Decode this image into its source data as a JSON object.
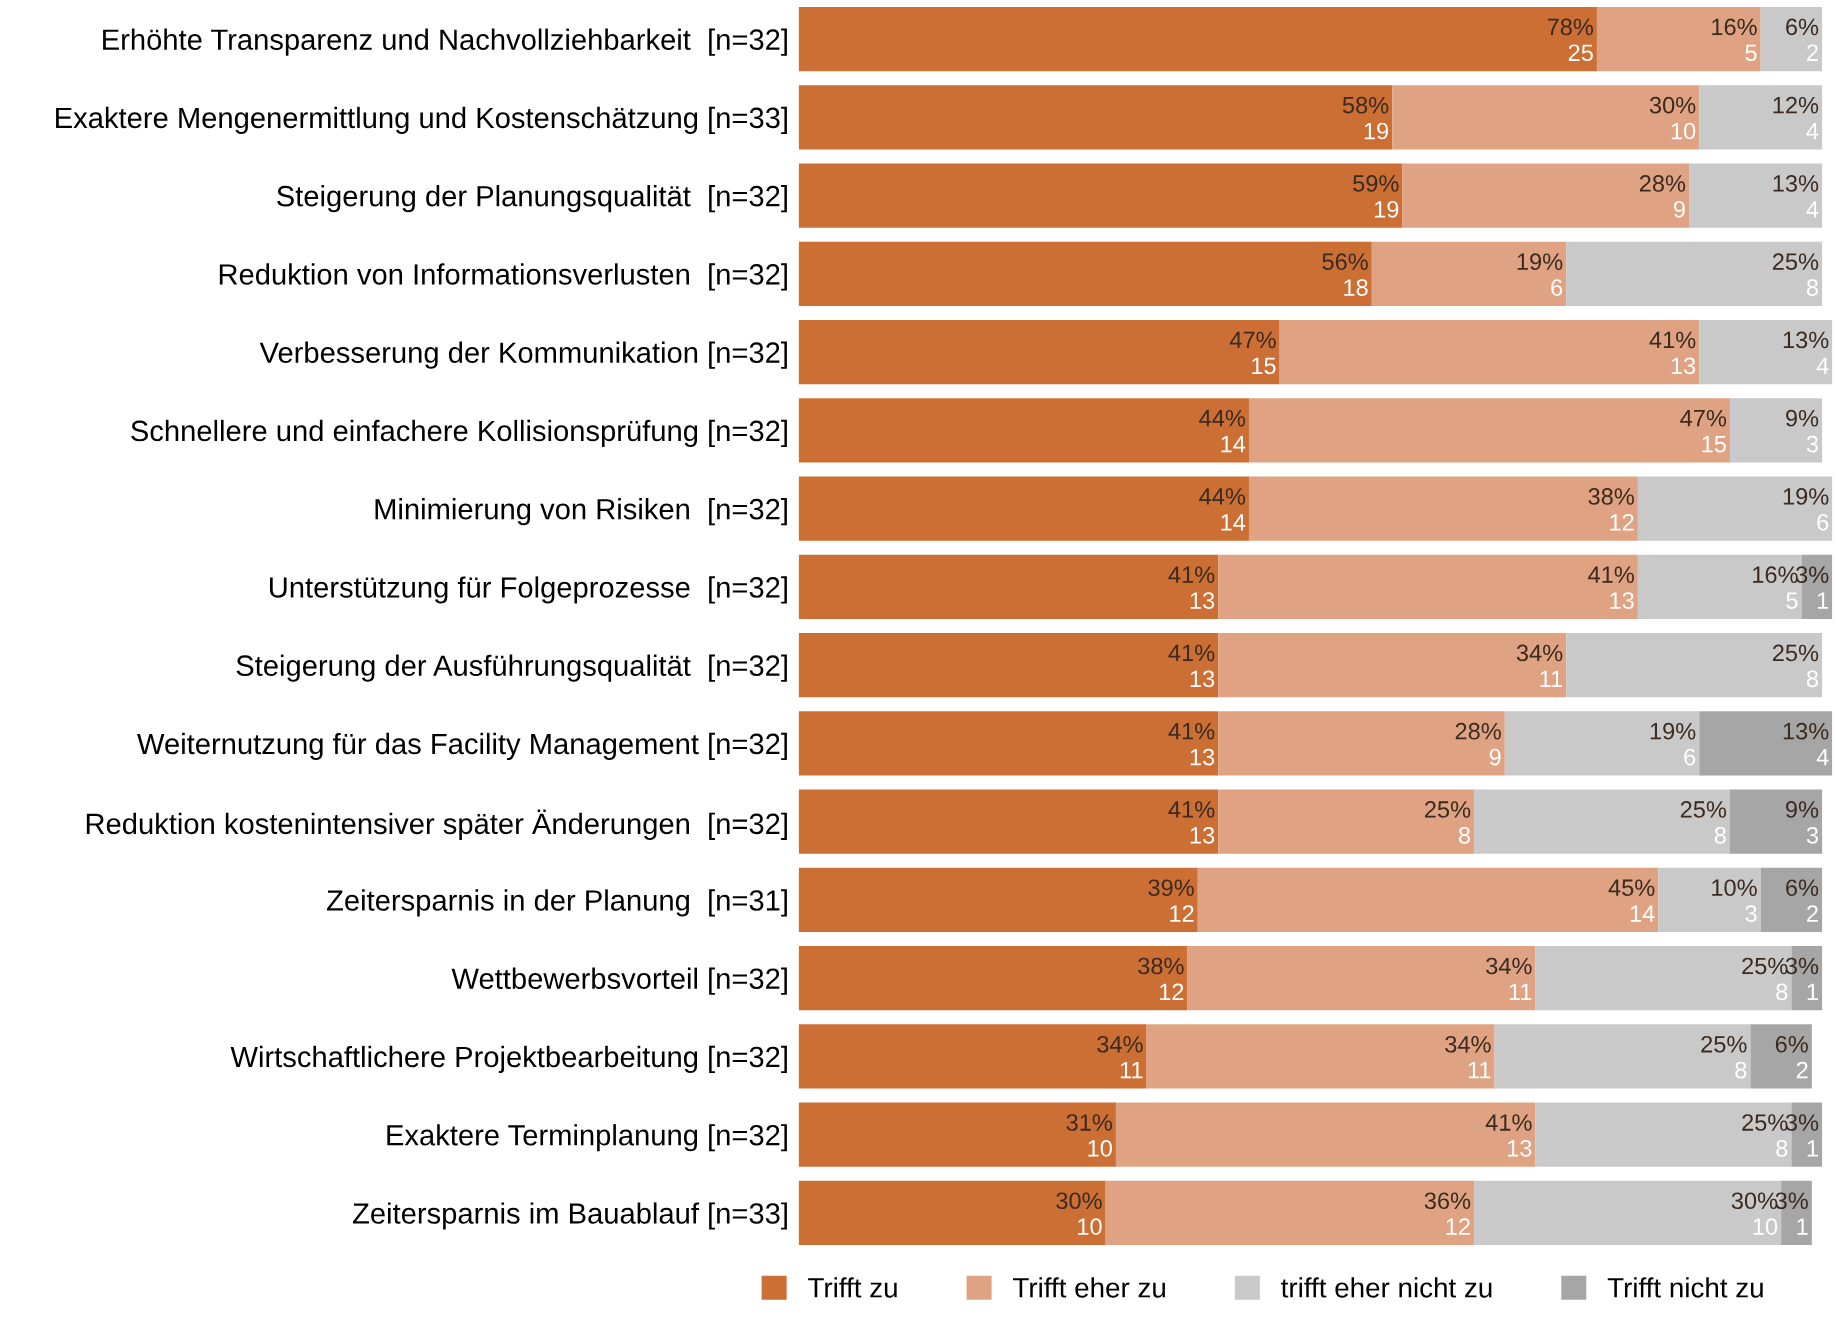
{
  "chart_data": {
    "type": "bar",
    "orientation": "horizontal",
    "stacked": true,
    "categories": [
      "Erhöhte Transparenz und Nachvollziehbarkeit  [n=32]",
      "Exaktere Mengenermittlung und Kostenschätzung [n=33]",
      "Steigerung der Planungsqualität  [n=32]",
      "Reduktion von Informationsverlusten  [n=32]",
      "Verbesserung der Kommunikation [n=32]",
      "Schnellere und einfachere Kollisionsprüfung [n=32]",
      "Minimierung von Risiken  [n=32]",
      "Unterstützung für Folgeprozesse  [n=32]",
      "Steigerung der Ausführungsqualität  [n=32]",
      "Weiternutzung für das Facility Management [n=32]",
      "Reduktion kostenintensiver später Änderungen  [n=32]",
      "Zeitersparnis in der Planung  [n=31]",
      "Wettbewerbsvorteil [n=32]",
      "Wirtschaftlichere Projektbearbeitung [n=32]",
      "Exaktere Terminplanung [n=32]",
      "Zeitersparnis im Bauablauf [n=33]"
    ],
    "xlim": [
      0,
      101
    ],
    "tick_labels": "y",
    "legend": "bottom",
    "grid": false,
    "series": [
      {
        "name": "Trifft zu",
        "color": "#cc6f35",
        "values": [
          78,
          58,
          59,
          56,
          47,
          44,
          44,
          41,
          41,
          41,
          41,
          39,
          38,
          34,
          31,
          30
        ],
        "value_labels": [
          "78%\n25",
          "58%\n19",
          "59%\n19",
          "56%\n18",
          "47%\n15",
          "44%\n14",
          "44%\n14",
          "41%\n13",
          "41%\n13",
          "41%\n13",
          "41%\n13",
          "39%\n12",
          "38%\n12",
          "34%\n11",
          "31%\n10",
          "30%\n10"
        ]
      },
      {
        "name": "Trifft eher zu",
        "color": "#dfa383",
        "values": [
          16,
          30,
          28,
          19,
          41,
          47,
          38,
          41,
          34,
          28,
          25,
          45,
          34,
          34,
          41,
          36
        ],
        "value_labels": [
          "16%\n5",
          "30%\n10",
          "28%\n9",
          "19%\n6",
          "41%\n13",
          "47%\n15",
          "38%\n12",
          "41%\n13",
          "34%\n11",
          "28%\n9",
          "25%\n8",
          "45%\n14",
          "34%\n11",
          "34%\n11",
          "41%\n13",
          "36%\n12"
        ]
      },
      {
        "name": "trifft eher nicht zu",
        "color": "#c9c9c9",
        "values": [
          6,
          12,
          13,
          25,
          13,
          9,
          19,
          16,
          25,
          19,
          25,
          10,
          25,
          25,
          25,
          30
        ],
        "value_labels": [
          "6%\n2",
          "12%\n4",
          "13%\n4",
          "25%\n8",
          "13%\n4",
          "9%\n3",
          "19%\n6",
          "16%\n5",
          "25%\n8",
          "19%\n6",
          "25%\n8",
          "10%\n3",
          "25%\n8",
          "25%\n8",
          "25%\n8",
          "30%\n10"
        ]
      },
      {
        "name": "Trifft nicht zu",
        "color": "#a6a6a6",
        "values": [
          null,
          null,
          null,
          null,
          null,
          null,
          null,
          3,
          null,
          13,
          9,
          6,
          3,
          6,
          3,
          3
        ],
        "value_labels": [
          null,
          null,
          null,
          null,
          null,
          null,
          null,
          "3%\n1",
          null,
          "13%\n4",
          "9%\n3",
          "6%\n2",
          "3%\n1",
          "6%\n2",
          "3%\n1",
          "3%\n1"
        ]
      }
    ]
  }
}
